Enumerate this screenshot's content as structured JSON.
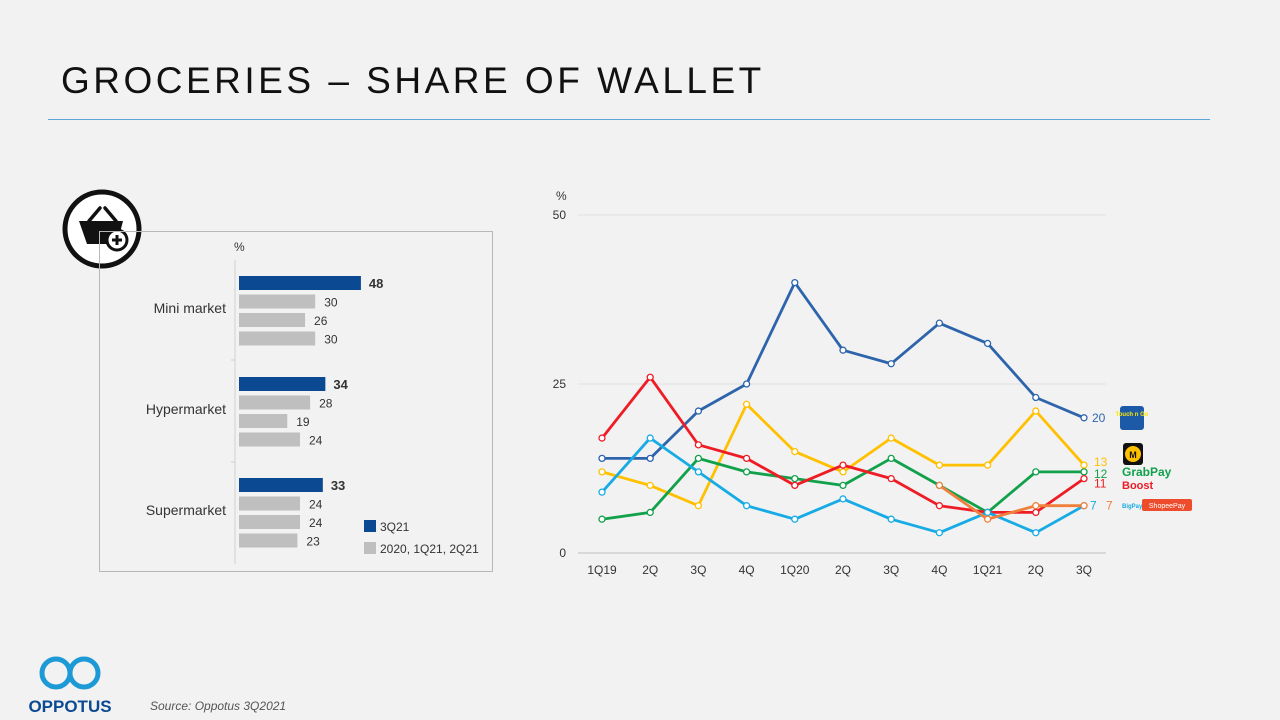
{
  "title": "GROCERIES – SHARE OF WALLET",
  "source": "Source: Oppotus 3Q2021",
  "brand": {
    "name": "OPPOTUS"
  },
  "colors": {
    "accent": "#5aa5d6",
    "bar_current": "#0b4a92",
    "bar_prior": "#bfbfbf"
  },
  "chart_data": [
    {
      "type": "bar",
      "orientation": "horizontal",
      "unit_label": "%",
      "categories": [
        "Mini market",
        "Hypermarket",
        "Supermarket"
      ],
      "series": [
        {
          "name": "3Q21",
          "values": [
            48,
            34,
            33
          ]
        },
        {
          "name": "2020",
          "values": [
            30,
            28,
            24
          ]
        },
        {
          "name": "1Q21",
          "values": [
            26,
            19,
            24
          ]
        },
        {
          "name": "2Q21",
          "values": [
            30,
            24,
            23
          ]
        }
      ],
      "legend": [
        {
          "label": "3Q21",
          "color": "#0b4a92"
        },
        {
          "label": "2020, 1Q21, 2Q21",
          "color": "#bfbfbf"
        }
      ],
      "xlim": [
        0,
        50
      ]
    },
    {
      "type": "line",
      "unit_label": "%",
      "x": [
        "1Q19",
        "2Q",
        "3Q",
        "4Q",
        "1Q20",
        "2Q",
        "3Q",
        "4Q",
        "1Q21",
        "2Q",
        "3Q"
      ],
      "ylim": [
        0,
        50
      ],
      "y_ticks": [
        "0",
        "25",
        "50"
      ],
      "series": [
        {
          "name": "Touch 'n Go eWallet",
          "color": "#2e64ac",
          "values": [
            14,
            14,
            21,
            25,
            40,
            30,
            28,
            34,
            31,
            23,
            20
          ],
          "end_label": "20",
          "logo_text": "Touch n Go"
        },
        {
          "name": "Maybank",
          "color": "#ffc000",
          "values": [
            12,
            10,
            7,
            22,
            15,
            12,
            17,
            13,
            13,
            21,
            13
          ],
          "end_label": "13",
          "logo_text": "M"
        },
        {
          "name": "GrabPay",
          "color": "#12a14b",
          "values": [
            5,
            6,
            14,
            12,
            11,
            10,
            14,
            10,
            6,
            12,
            12
          ],
          "end_label": "12",
          "logo_text": "GrabPay"
        },
        {
          "name": "Boost",
          "color": "#ee1c25",
          "values": [
            17,
            26,
            16,
            14,
            10,
            13,
            11,
            7,
            6,
            6,
            11
          ],
          "end_label": "11",
          "logo_text": "Boost"
        },
        {
          "name": "BigPay",
          "color": "#17abe6",
          "values": [
            9,
            17,
            12,
            7,
            5,
            8,
            5,
            3,
            6,
            3,
            7
          ],
          "end_label": "7",
          "logo_text": "BigPay"
        },
        {
          "name": "ShopeePay",
          "color": "#f07f3c",
          "values": [
            null,
            null,
            null,
            null,
            null,
            null,
            null,
            10,
            5,
            7,
            7
          ],
          "end_label": "7",
          "logo_text": "ShopeePay"
        }
      ]
    }
  ]
}
